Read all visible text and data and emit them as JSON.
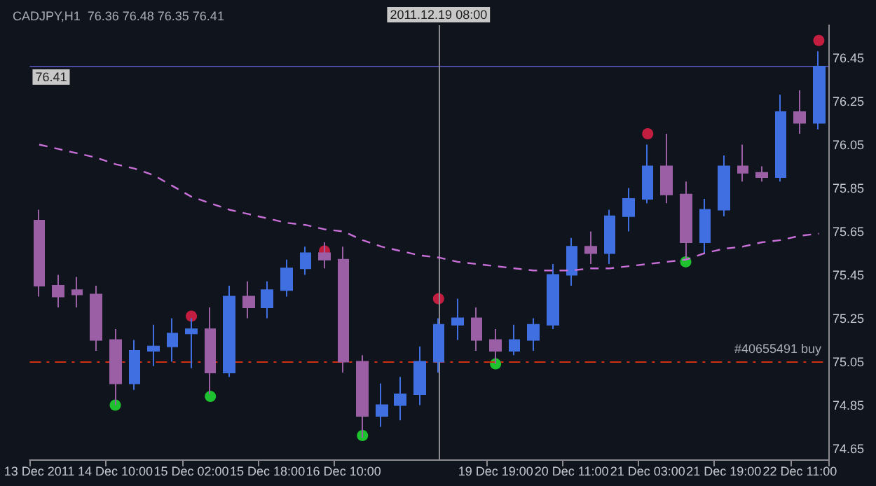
{
  "chart_data": {
    "type": "candlestick",
    "title": "CADJPY,H1  76.36 76.48 76.35 76.41",
    "categories": [
      "13 Dec 2011",
      null,
      null,
      null,
      "14 Dec 10:00",
      null,
      null,
      null,
      "15 Dec 02:00",
      null,
      null,
      null,
      "15 Dec 18:00",
      null,
      null,
      null,
      "16 Dec 10:00",
      null,
      null,
      null,
      null,
      null,
      null,
      null,
      "19 Dec 19:00",
      null,
      null,
      null,
      "20 Dec 11:00",
      null,
      null,
      null,
      "21 Dec 03:00",
      null,
      null,
      null,
      "21 Dec 19:00",
      null,
      null,
      null,
      "22 Dec 11:00",
      null
    ],
    "ohlc": [
      [
        75.7,
        75.75,
        75.35,
        75.4
      ],
      [
        75.4,
        75.45,
        75.3,
        75.35
      ],
      [
        75.38,
        75.44,
        75.3,
        75.36
      ],
      [
        75.36,
        75.4,
        75.1,
        75.15
      ],
      [
        75.15,
        75.2,
        74.85,
        74.95
      ],
      [
        74.95,
        75.15,
        74.92,
        75.1
      ],
      [
        75.1,
        75.22,
        75.03,
        75.12
      ],
      [
        75.12,
        75.25,
        75.05,
        75.18
      ],
      [
        75.18,
        75.25,
        75.02,
        75.2
      ],
      [
        75.2,
        75.3,
        74.9,
        75.0
      ],
      [
        75.0,
        75.4,
        74.98,
        75.35
      ],
      [
        75.35,
        75.42,
        75.25,
        75.3
      ],
      [
        75.3,
        75.42,
        75.25,
        75.38
      ],
      [
        75.38,
        75.52,
        75.35,
        75.48
      ],
      [
        75.48,
        75.58,
        75.45,
        75.55
      ],
      [
        75.55,
        75.6,
        75.48,
        75.52
      ],
      [
        75.52,
        75.58,
        75.0,
        75.05
      ],
      [
        75.05,
        75.08,
        74.7,
        74.8
      ],
      [
        74.8,
        74.95,
        74.75,
        74.85
      ],
      [
        74.85,
        74.98,
        74.78,
        74.9
      ],
      [
        74.9,
        75.12,
        74.85,
        75.05
      ],
      [
        75.05,
        75.25,
        75.0,
        75.22
      ],
      [
        75.22,
        75.34,
        75.15,
        75.25
      ],
      [
        75.25,
        75.3,
        75.1,
        75.15
      ],
      [
        75.15,
        75.2,
        75.04,
        75.1
      ],
      [
        75.1,
        75.22,
        75.08,
        75.15
      ],
      [
        75.15,
        75.25,
        75.1,
        75.22
      ],
      [
        75.22,
        75.5,
        75.2,
        75.45
      ],
      [
        75.45,
        75.62,
        75.4,
        75.58
      ],
      [
        75.58,
        75.65,
        75.5,
        75.55
      ],
      [
        75.55,
        75.75,
        75.5,
        75.72
      ],
      [
        75.72,
        75.85,
        75.65,
        75.8
      ],
      [
        75.8,
        76.05,
        75.78,
        75.95
      ],
      [
        75.95,
        76.1,
        75.78,
        75.82
      ],
      [
        75.82,
        75.88,
        75.52,
        75.6
      ],
      [
        75.6,
        75.8,
        75.55,
        75.75
      ],
      [
        75.75,
        76.0,
        75.72,
        75.95
      ],
      [
        75.95,
        76.05,
        75.88,
        75.92
      ],
      [
        75.92,
        75.95,
        75.88,
        75.9
      ],
      [
        75.9,
        76.28,
        75.88,
        76.2
      ],
      [
        76.2,
        76.3,
        76.1,
        76.15
      ],
      [
        76.15,
        76.48,
        76.12,
        76.41
      ]
    ],
    "colors": [
      "#9b5fa6",
      "#9b5fa6",
      "#9b5fa6",
      "#9b5fa6",
      "#9b5fa6",
      "#3f6fe0",
      "#3f6fe0",
      "#3f6fe0",
      "#3f6fe0",
      "#9b5fa6",
      "#3f6fe0",
      "#9b5fa6",
      "#3f6fe0",
      "#3f6fe0",
      "#3f6fe0",
      "#9b5fa6",
      "#9b5fa6",
      "#9b5fa6",
      "#3f6fe0",
      "#3f6fe0",
      "#3f6fe0",
      "#3f6fe0",
      "#3f6fe0",
      "#9b5fa6",
      "#9b5fa6",
      "#3f6fe0",
      "#3f6fe0",
      "#3f6fe0",
      "#3f6fe0",
      "#9b5fa6",
      "#3f6fe0",
      "#3f6fe0",
      "#3f6fe0",
      "#9b5fa6",
      "#9b5fa6",
      "#3f6fe0",
      "#3f6fe0",
      "#9b5fa6",
      "#9b5fa6",
      "#3f6fe0",
      "#9b5fa6",
      "#3f6fe0"
    ],
    "series": [
      {
        "type": "line",
        "color": "#c86fd8",
        "line_style": "dashed",
        "marker": "none",
        "values": [
          76.05,
          76.03,
          76.01,
          75.99,
          75.96,
          75.94,
          75.91,
          75.86,
          75.81,
          75.78,
          75.75,
          75.73,
          75.71,
          75.69,
          75.68,
          75.66,
          75.65,
          75.61,
          75.58,
          75.56,
          75.54,
          75.53,
          75.51,
          75.5,
          75.49,
          75.48,
          75.47,
          75.47,
          75.47,
          75.48,
          75.48,
          75.49,
          75.5,
          75.51,
          75.52,
          75.55,
          75.57,
          75.58,
          75.6,
          75.61,
          75.63,
          75.64
        ]
      },
      {
        "type": "scatter",
        "color": "#f0204a",
        "marker": "circle",
        "values": [
          null,
          null,
          null,
          null,
          null,
          null,
          null,
          null,
          75.26,
          null,
          null,
          null,
          null,
          null,
          null,
          75.56,
          null,
          null,
          null,
          null,
          null,
          75.34,
          null,
          null,
          null,
          null,
          null,
          null,
          null,
          null,
          null,
          null,
          76.1,
          null,
          null,
          null,
          null,
          null,
          null,
          null,
          null,
          76.53
        ]
      },
      {
        "type": "scatter",
        "color": "#22ee33",
        "marker": "circle",
        "values": [
          null,
          null,
          null,
          null,
          74.85,
          null,
          null,
          null,
          null,
          74.89,
          null,
          null,
          null,
          null,
          null,
          null,
          null,
          74.71,
          null,
          null,
          null,
          null,
          null,
          null,
          75.04,
          null,
          null,
          null,
          null,
          null,
          null,
          null,
          null,
          null,
          75.51,
          null,
          null,
          null,
          null,
          null,
          null,
          null
        ]
      }
    ],
    "ylim": [
      74.6,
      76.6
    ],
    "yticks": [
      74.65,
      74.85,
      75.05,
      75.25,
      75.45,
      75.65,
      75.85,
      76.05,
      76.25,
      76.45
    ],
    "ref_lines": [
      {
        "axis": "y",
        "value": 75.05,
        "label": "#40655491 buy",
        "color": "#d03010",
        "line_style": "dashdot"
      },
      {
        "axis": "y",
        "value": 76.41,
        "label": "76.41",
        "color": "#4a4aa0",
        "line_style": "solid"
      }
    ],
    "annotations": [
      "2011.12.19 08:00"
    ],
    "grid": false
  }
}
